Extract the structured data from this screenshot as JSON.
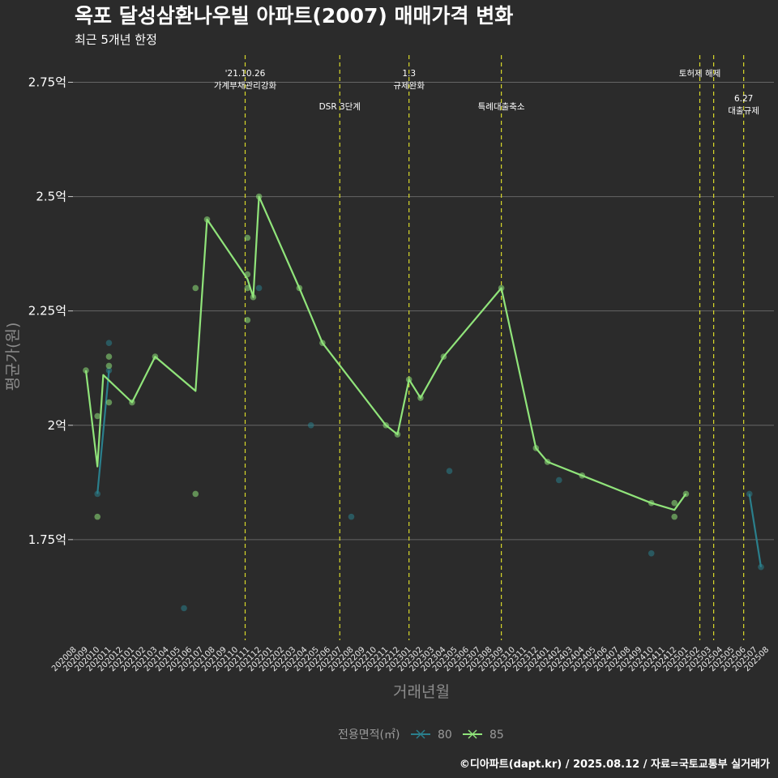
{
  "chart_data": {
    "type": "line",
    "title": "옥포 달성삼환나우빌 아파트(2007) 매매가격 변화",
    "subtitle": "최근 5개년 한정",
    "xlabel": "거래년월",
    "ylabel": "평균가(원)",
    "caption": "©디아파트(dapt.kr) / 2025.08.12 / 자료=국토교통부 실거래가",
    "ylim": [
      1.53,
      2.82
    ],
    "yticks": [
      {
        "value": 1.75,
        "label": "1.75억"
      },
      {
        "value": 2.0,
        "label": "2억"
      },
      {
        "value": 2.25,
        "label": "2.25억"
      },
      {
        "value": 2.5,
        "label": "2.5억"
      },
      {
        "value": 2.75,
        "label": "2.75억"
      }
    ],
    "categories": [
      "202008",
      "202009",
      "202010",
      "202011",
      "202012",
      "202101",
      "202102",
      "202103",
      "202104",
      "202105",
      "202106",
      "202107",
      "202108",
      "202109",
      "202110",
      "202111",
      "202112",
      "202201",
      "202202",
      "202203",
      "202204",
      "202205",
      "202206",
      "202207",
      "202208",
      "202209",
      "202210",
      "202211",
      "202212",
      "202301",
      "202302",
      "202303",
      "202304",
      "202305",
      "202306",
      "202307",
      "202308",
      "202309",
      "202310",
      "202311",
      "202312",
      "202401",
      "202402",
      "202403",
      "202404",
      "202405",
      "202406",
      "202407",
      "202408",
      "202409",
      "202410",
      "202411",
      "202412",
      "202501",
      "202502",
      "202503",
      "202504",
      "202505",
      "202506",
      "202507",
      "202508"
    ],
    "legend": {
      "title": "전용면적(㎡)",
      "items": [
        "80",
        "85"
      ]
    },
    "series": [
      {
        "name": "80",
        "color": "#2a7f8c",
        "line": [
          {
            "x": 2020.75,
            "y": 1.85
          },
          {
            "x": 2020.8333,
            "y": 2.12
          }
        ],
        "line2": [
          {
            "x": 2025.4583,
            "y": 1.85
          },
          {
            "x": 2025.5417,
            "y": 1.69
          }
        ],
        "points": [
          {
            "x": 2020.75,
            "y": 1.85
          },
          {
            "x": 2020.8333,
            "y": 2.18
          },
          {
            "x": 2020.8333,
            "y": 2.12
          },
          {
            "x": 2021.375,
            "y": 1.6
          },
          {
            "x": 2021.9167,
            "y": 2.3
          },
          {
            "x": 2022.2917,
            "y": 2.0
          },
          {
            "x": 2022.5833,
            "y": 1.8
          },
          {
            "x": 2023.2917,
            "y": 1.9
          },
          {
            "x": 2024.0833,
            "y": 1.88
          },
          {
            "x": 2024.75,
            "y": 1.72
          },
          {
            "x": 2025.4583,
            "y": 1.85
          },
          {
            "x": 2025.5417,
            "y": 1.69
          }
        ]
      },
      {
        "name": "85",
        "color": "#90e47a",
        "line": [
          {
            "x": 2020.6667,
            "y": 2.12
          },
          {
            "x": 2020.75,
            "y": 1.91
          },
          {
            "x": 2020.7917,
            "y": 2.11
          },
          {
            "x": 2021.0,
            "y": 2.05
          },
          {
            "x": 2021.1667,
            "y": 2.15
          },
          {
            "x": 2021.4583,
            "y": 2.075
          },
          {
            "x": 2021.5417,
            "y": 2.45
          },
          {
            "x": 2021.8333,
            "y": 2.32
          },
          {
            "x": 2021.875,
            "y": 2.28
          },
          {
            "x": 2021.9167,
            "y": 2.5
          },
          {
            "x": 2022.2083,
            "y": 2.3
          },
          {
            "x": 2022.375,
            "y": 2.18
          },
          {
            "x": 2022.8333,
            "y": 2.0
          },
          {
            "x": 2022.9167,
            "y": 1.98
          },
          {
            "x": 2023.0,
            "y": 2.1
          },
          {
            "x": 2023.0833,
            "y": 2.06
          },
          {
            "x": 2023.25,
            "y": 2.15
          },
          {
            "x": 2023.6667,
            "y": 2.3
          },
          {
            "x": 2023.9167,
            "y": 1.95
          },
          {
            "x": 2024.0,
            "y": 1.92
          },
          {
            "x": 2024.25,
            "y": 1.89
          },
          {
            "x": 2024.75,
            "y": 1.83
          },
          {
            "x": 2024.9167,
            "y": 1.815
          },
          {
            "x": 2025.0,
            "y": 1.85
          }
        ],
        "points": [
          {
            "x": 2020.6667,
            "y": 2.12
          },
          {
            "x": 2020.75,
            "y": 2.02
          },
          {
            "x": 2020.75,
            "y": 1.8
          },
          {
            "x": 2020.8333,
            "y": 2.15
          },
          {
            "x": 2020.8333,
            "y": 2.13
          },
          {
            "x": 2020.8333,
            "y": 2.05
          },
          {
            "x": 2021.0,
            "y": 2.05
          },
          {
            "x": 2021.1667,
            "y": 2.15
          },
          {
            "x": 2021.4583,
            "y": 2.3
          },
          {
            "x": 2021.4583,
            "y": 1.85
          },
          {
            "x": 2021.5417,
            "y": 2.45
          },
          {
            "x": 2021.8333,
            "y": 2.41
          },
          {
            "x": 2021.8333,
            "y": 2.33
          },
          {
            "x": 2021.8333,
            "y": 2.3
          },
          {
            "x": 2021.8333,
            "y": 2.23
          },
          {
            "x": 2021.875,
            "y": 2.28
          },
          {
            "x": 2021.9167,
            "y": 2.5
          },
          {
            "x": 2022.2083,
            "y": 2.3
          },
          {
            "x": 2022.375,
            "y": 2.18
          },
          {
            "x": 2022.8333,
            "y": 2.0
          },
          {
            "x": 2022.9167,
            "y": 1.98
          },
          {
            "x": 2023.0,
            "y": 2.1
          },
          {
            "x": 2023.0833,
            "y": 2.06
          },
          {
            "x": 2023.25,
            "y": 2.15
          },
          {
            "x": 2023.6667,
            "y": 2.3
          },
          {
            "x": 2023.9167,
            "y": 1.95
          },
          {
            "x": 2024.0,
            "y": 1.92
          },
          {
            "x": 2024.25,
            "y": 1.89
          },
          {
            "x": 2024.75,
            "y": 1.83
          },
          {
            "x": 2024.9167,
            "y": 1.8
          },
          {
            "x": 2024.9167,
            "y": 1.83
          },
          {
            "x": 2025.0,
            "y": 1.85
          }
        ]
      }
    ],
    "annotations": [
      {
        "x": 2021.8167,
        "lines": [
          "'21.10.26",
          "가계부채관리강화"
        ],
        "row": 1
      },
      {
        "x": 2022.5,
        "lines": [
          "DSR 3단계"
        ],
        "row": 2
      },
      {
        "x": 2023.0,
        "lines": [
          "1.3",
          "규제완화"
        ],
        "row": 1
      },
      {
        "x": 2023.6667,
        "lines": [
          "특례대출축소"
        ],
        "row": 2
      },
      {
        "x": 2025.1,
        "lines": [
          "토허제 해제"
        ],
        "row": 1
      },
      {
        "x": 2025.2,
        "lines": [],
        "row": 0
      },
      {
        "x": 2025.4167,
        "lines": [
          "6.27",
          "대출규제"
        ],
        "row": 3
      }
    ]
  }
}
